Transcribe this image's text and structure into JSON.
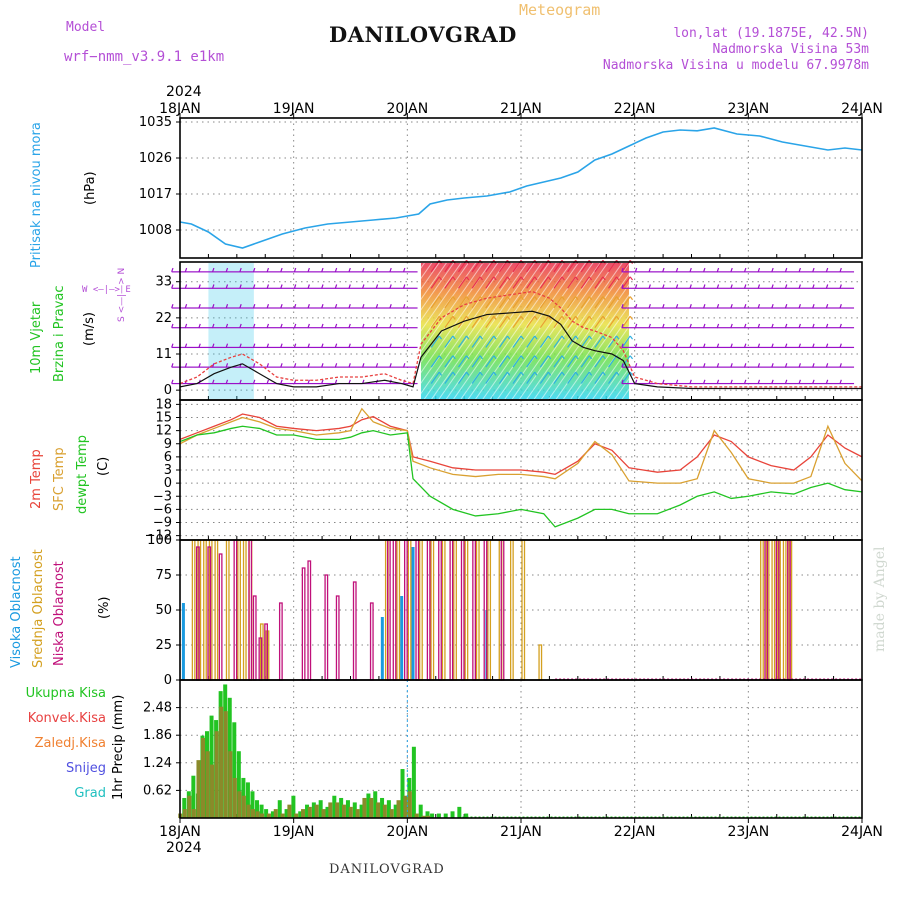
{
  "header": {
    "model_label": "Model",
    "model_name": "wrf−nmm_v3.9.1  e1km",
    "chart_kind": "Meteogram",
    "location": "DANILOVGRAD",
    "lonlat": "lon,lat (19.1875E, 42.5N)",
    "elevation": "Nadmorska Visina 53m",
    "model_elevation": "Nadmorska Visina u modelu 67.9978m"
  },
  "footer_location": "DANILOVGRAD",
  "watermark": "made by Angel",
  "time_axis": {
    "year": "2024",
    "top_labels": [
      "18JAN",
      "19JAN",
      "20JAN",
      "21JAN",
      "22JAN",
      "23JAN",
      "24JAN"
    ],
    "bottom_labels": [
      "18JAN",
      "19JAN",
      "20JAN",
      "21JAN",
      "22JAN",
      "23JAN",
      "24JAN"
    ]
  },
  "panel_labels": {
    "pressure": {
      "name": "Pritisak na nivou mora",
      "unit": "(hPa)"
    },
    "wind": {
      "line1": "10m Vjetar",
      "line2": "Brzina i Pravac",
      "unit": "(m/s)",
      "compass": "W  <—|—>  E",
      "north_south": "S <—|—> N"
    },
    "temp": {
      "t2m": "2m Temp",
      "sfc": "SFC Temp",
      "dew": "dewpt Temp",
      "unit": "(C)"
    },
    "cloud": {
      "high": "Visoka Oblacnost",
      "mid": "Srednja Oblacnost",
      "low": "Niska Oblacnost",
      "unit": "(%)"
    },
    "precip": {
      "unit": "1hr Precip (mm)",
      "legend": [
        "Ukupna Kisa",
        "Konvek.Kisa",
        "Zaledj.Kisa",
        "Snijeg",
        "Grad"
      ]
    }
  },
  "colors": {
    "pressure": "#2aa4e8",
    "t2m": "#e8443a",
    "sfc": "#d9a030",
    "dew": "#22c422",
    "cloud_high": "#1a9ae0",
    "cloud_mid": "#d4a020",
    "cloud_low": "#c0107a",
    "precip_total": "#22c422",
    "precip_conv": "#e84040",
    "precip_frz": "#f08030",
    "snow": "#5050e0",
    "hail": "#20c0c0",
    "wind_barb": "#9a10c8",
    "grid": "#888888"
  },
  "chart_data": [
    {
      "type": "line",
      "panel": "pressure",
      "ylabel": "(hPa)",
      "yticks": [
        1008,
        1017,
        1026,
        1035
      ],
      "ylim": [
        1001,
        1036
      ],
      "x_days": [
        0,
        0.1,
        0.25,
        0.4,
        0.55,
        0.7,
        0.9,
        1.1,
        1.3,
        1.5,
        1.7,
        1.9,
        2.0,
        2.1,
        2.2,
        2.35,
        2.5,
        2.7,
        2.9,
        3.05,
        3.2,
        3.35,
        3.5,
        3.65,
        3.8,
        3.95,
        4.1,
        4.25,
        4.4,
        4.55,
        4.7,
        4.9,
        5.1,
        5.3,
        5.5,
        5.7,
        5.85,
        6.0
      ],
      "series": [
        {
          "values": [
            1010,
            1009.5,
            1007.5,
            1004.5,
            1003.5,
            1005,
            1007,
            1008.5,
            1009.5,
            1010,
            1010.5,
            1011,
            1011.5,
            1012,
            1014.5,
            1015.5,
            1016,
            1016.5,
            1017.5,
            1019,
            1020,
            1021,
            1022.5,
            1025.5,
            1027,
            1029,
            1031,
            1032.5,
            1033,
            1032.8,
            1033.5,
            1032,
            1031.5,
            1030,
            1029,
            1028,
            1028.5,
            1028
          ]
        }
      ]
    },
    {
      "type": "line",
      "panel": "wind",
      "ylabel": "(m/s)",
      "yticks": [
        0,
        11,
        22,
        33
      ],
      "ylim": [
        -3,
        39
      ],
      "x_days": [
        0,
        0.15,
        0.3,
        0.45,
        0.55,
        0.7,
        0.85,
        1.0,
        1.2,
        1.4,
        1.6,
        1.8,
        1.95,
        2.05,
        2.12,
        2.3,
        2.5,
        2.7,
        2.9,
        3.1,
        3.25,
        3.35,
        3.45,
        3.55,
        3.65,
        3.8,
        3.9,
        4.0,
        4.2,
        4.5,
        5.0,
        5.5,
        6.0
      ],
      "series": [
        {
          "name": "brzina",
          "values": [
            1,
            2,
            5,
            7,
            8,
            5,
            2,
            1,
            1,
            2,
            2,
            3,
            2,
            1,
            10,
            18,
            21,
            23,
            23.5,
            24,
            22.5,
            20,
            15,
            13,
            12,
            11,
            9,
            2,
            1,
            0.5,
            0.5,
            0.5,
            0.5
          ]
        },
        {
          "name": "udar",
          "values": [
            2,
            4,
            8,
            10,
            11,
            8,
            4,
            3,
            3,
            4,
            4,
            5,
            3,
            2,
            14,
            22,
            26,
            28,
            29,
            30,
            28,
            25,
            21,
            19,
            18,
            16,
            12,
            4,
            2,
            1,
            1,
            1,
            1
          ]
        }
      ]
    },
    {
      "type": "line",
      "panel": "temperature",
      "ylabel": "(C)",
      "yticks": [
        18,
        15,
        12,
        9,
        6,
        3,
        0,
        -3,
        -6,
        -9,
        -12
      ],
      "ylim": [
        -13,
        19
      ],
      "x_days": [
        0,
        0.15,
        0.3,
        0.45,
        0.55,
        0.7,
        0.85,
        1.0,
        1.2,
        1.4,
        1.5,
        1.6,
        1.7,
        1.85,
        2.0,
        2.05,
        2.2,
        2.4,
        2.6,
        2.8,
        3.0,
        3.2,
        3.3,
        3.5,
        3.65,
        3.8,
        3.95,
        4.2,
        4.4,
        4.55,
        4.7,
        4.85,
        5.0,
        5.2,
        5.4,
        5.55,
        5.7,
        5.85,
        6.0
      ],
      "series": [
        {
          "name": "2m Temp",
          "values": [
            10,
            11.5,
            13,
            14.5,
            15.8,
            15,
            13,
            12.5,
            12,
            12.5,
            13,
            14.5,
            15.2,
            13,
            12,
            6,
            5,
            3.5,
            3,
            3,
            3,
            2.5,
            2,
            5,
            9,
            7.5,
            3.5,
            2.5,
            3,
            6,
            11,
            9.5,
            6,
            4,
            3,
            6,
            11,
            8,
            6
          ]
        },
        {
          "name": "SFC Temp",
          "values": [
            9,
            11,
            12.5,
            14,
            15,
            14,
            12.5,
            12,
            11,
            11.5,
            12,
            17,
            14,
            12.5,
            12,
            5,
            3.5,
            2,
            1.5,
            2,
            2,
            1.5,
            1,
            4.5,
            9.5,
            6.5,
            0.5,
            0,
            0,
            1,
            12,
            7,
            1,
            0,
            0,
            1.5,
            13,
            4.5,
            0.5
          ]
        },
        {
          "name": "dewpt Temp",
          "values": [
            9.5,
            11,
            11.5,
            12.5,
            13,
            12.5,
            11,
            11,
            10,
            10,
            10.5,
            11.5,
            12,
            11,
            11.5,
            1,
            -3,
            -6,
            -7.5,
            -7,
            -6,
            -7,
            -10,
            -8,
            -6,
            -6,
            -7,
            -7,
            -5,
            -3,
            -2,
            -3.5,
            -3,
            -2,
            -2.5,
            -1,
            0,
            -1.5,
            -2
          ]
        }
      ]
    },
    {
      "type": "bar",
      "panel": "cloud",
      "ylabel": "(%)",
      "yticks": [
        0,
        25,
        50,
        75,
        100
      ],
      "ylim": [
        0,
        100
      ],
      "series": [
        {
          "name": "Visoka Oblacnost",
          "x_days": [
            0.03,
            1.78,
            1.95,
            2.05,
            2.7
          ],
          "values": [
            55,
            45,
            60,
            95,
            50
          ]
        },
        {
          "name": "Srednja Oblacnost",
          "x_days": [
            0.1,
            0.15,
            0.2,
            0.25,
            0.3,
            0.4,
            0.5,
            0.55,
            0.6,
            0.7,
            0.75,
            1.8,
            1.9,
            2.0,
            2.1,
            2.2,
            2.3,
            2.4,
            2.5,
            2.6,
            2.7,
            2.8,
            2.9,
            3.0,
            3.15,
            5.1,
            5.15,
            5.2,
            5.25,
            5.3,
            5.35
          ],
          "values": [
            100,
            100,
            100,
            100,
            100,
            100,
            100,
            100,
            100,
            40,
            35,
            100,
            100,
            100,
            100,
            100,
            100,
            100,
            100,
            100,
            100,
            100,
            100,
            100,
            25,
            100,
            100,
            100,
            100,
            100,
            100
          ]
        },
        {
          "name": "Niska Oblacnost",
          "x_days": [
            0.12,
            0.22,
            0.32,
            0.45,
            0.58,
            0.62,
            0.67,
            0.72,
            0.85,
            1.05,
            1.1,
            1.25,
            1.35,
            1.5,
            1.65,
            1.8,
            1.85,
            1.95,
            2.05,
            2.15,
            2.25,
            2.35,
            2.45,
            2.55,
            2.65,
            2.8,
            5.12,
            5.22,
            5.32
          ],
          "values": [
            95,
            95,
            90,
            100,
            100,
            60,
            30,
            40,
            55,
            80,
            85,
            75,
            60,
            70,
            55,
            100,
            100,
            100,
            100,
            100,
            100,
            100,
            100,
            100,
            100,
            100,
            100,
            100,
            100
          ]
        }
      ]
    },
    {
      "type": "bar",
      "panel": "precip",
      "ylabel": "1hr Precip (mm)",
      "yticks": [
        0.62,
        1.24,
        1.86,
        2.48
      ],
      "ylim": [
        0,
        3.1
      ],
      "x_days": [
        0.02,
        0.06,
        0.1,
        0.14,
        0.18,
        0.22,
        0.26,
        0.3,
        0.34,
        0.38,
        0.42,
        0.46,
        0.5,
        0.54,
        0.58,
        0.62,
        0.66,
        0.7,
        0.74,
        0.8,
        0.86,
        0.92,
        0.98,
        1.04,
        1.1,
        1.16,
        1.22,
        1.28,
        1.34,
        1.4,
        1.46,
        1.52,
        1.58,
        1.64,
        1.7,
        1.76,
        1.82,
        1.88,
        1.94,
        2.0,
        2.04,
        2.1,
        2.16,
        2.2,
        2.26,
        2.32,
        2.38,
        2.44,
        2.5
      ],
      "series": [
        {
          "name": "Ukupna Kisa",
          "values": [
            0.45,
            0.6,
            0.95,
            0.55,
            1.85,
            1.95,
            2.3,
            2.2,
            2.85,
            3.0,
            2.7,
            2.15,
            1.5,
            0.9,
            0.8,
            0.6,
            0.4,
            0.3,
            0.2,
            0.15,
            0.4,
            0.2,
            0.5,
            0.15,
            0.3,
            0.35,
            0.4,
            0.25,
            0.5,
            0.45,
            0.4,
            0.35,
            0.3,
            0.55,
            0.6,
            0.45,
            0.4,
            0.3,
            1.1,
            0.9,
            1.6,
            0.3,
            0.15,
            0.1,
            0.1,
            0.1,
            0.15,
            0.25,
            0.1
          ]
        },
        {
          "name": "Konvek.Kisa",
          "values": [
            0.1,
            0.2,
            0.5,
            0.2,
            1.3,
            1.8,
            1.5,
            1.2,
            1.95,
            2.5,
            2.4,
            1.5,
            0.9,
            0.6,
            0.5,
            0.3,
            0.2,
            0.15,
            0.1,
            0.1,
            0.2,
            0.1,
            0.3,
            0.1,
            0.2,
            0.25,
            0.3,
            0.2,
            0.35,
            0.35,
            0.3,
            0.25,
            0.2,
            0.45,
            0.45,
            0.35,
            0.3,
            0.2,
            0.4,
            0.5,
            0.6,
            0.1,
            0.05,
            0.05,
            0,
            0,
            0,
            0,
            0
          ]
        }
      ]
    }
  ]
}
